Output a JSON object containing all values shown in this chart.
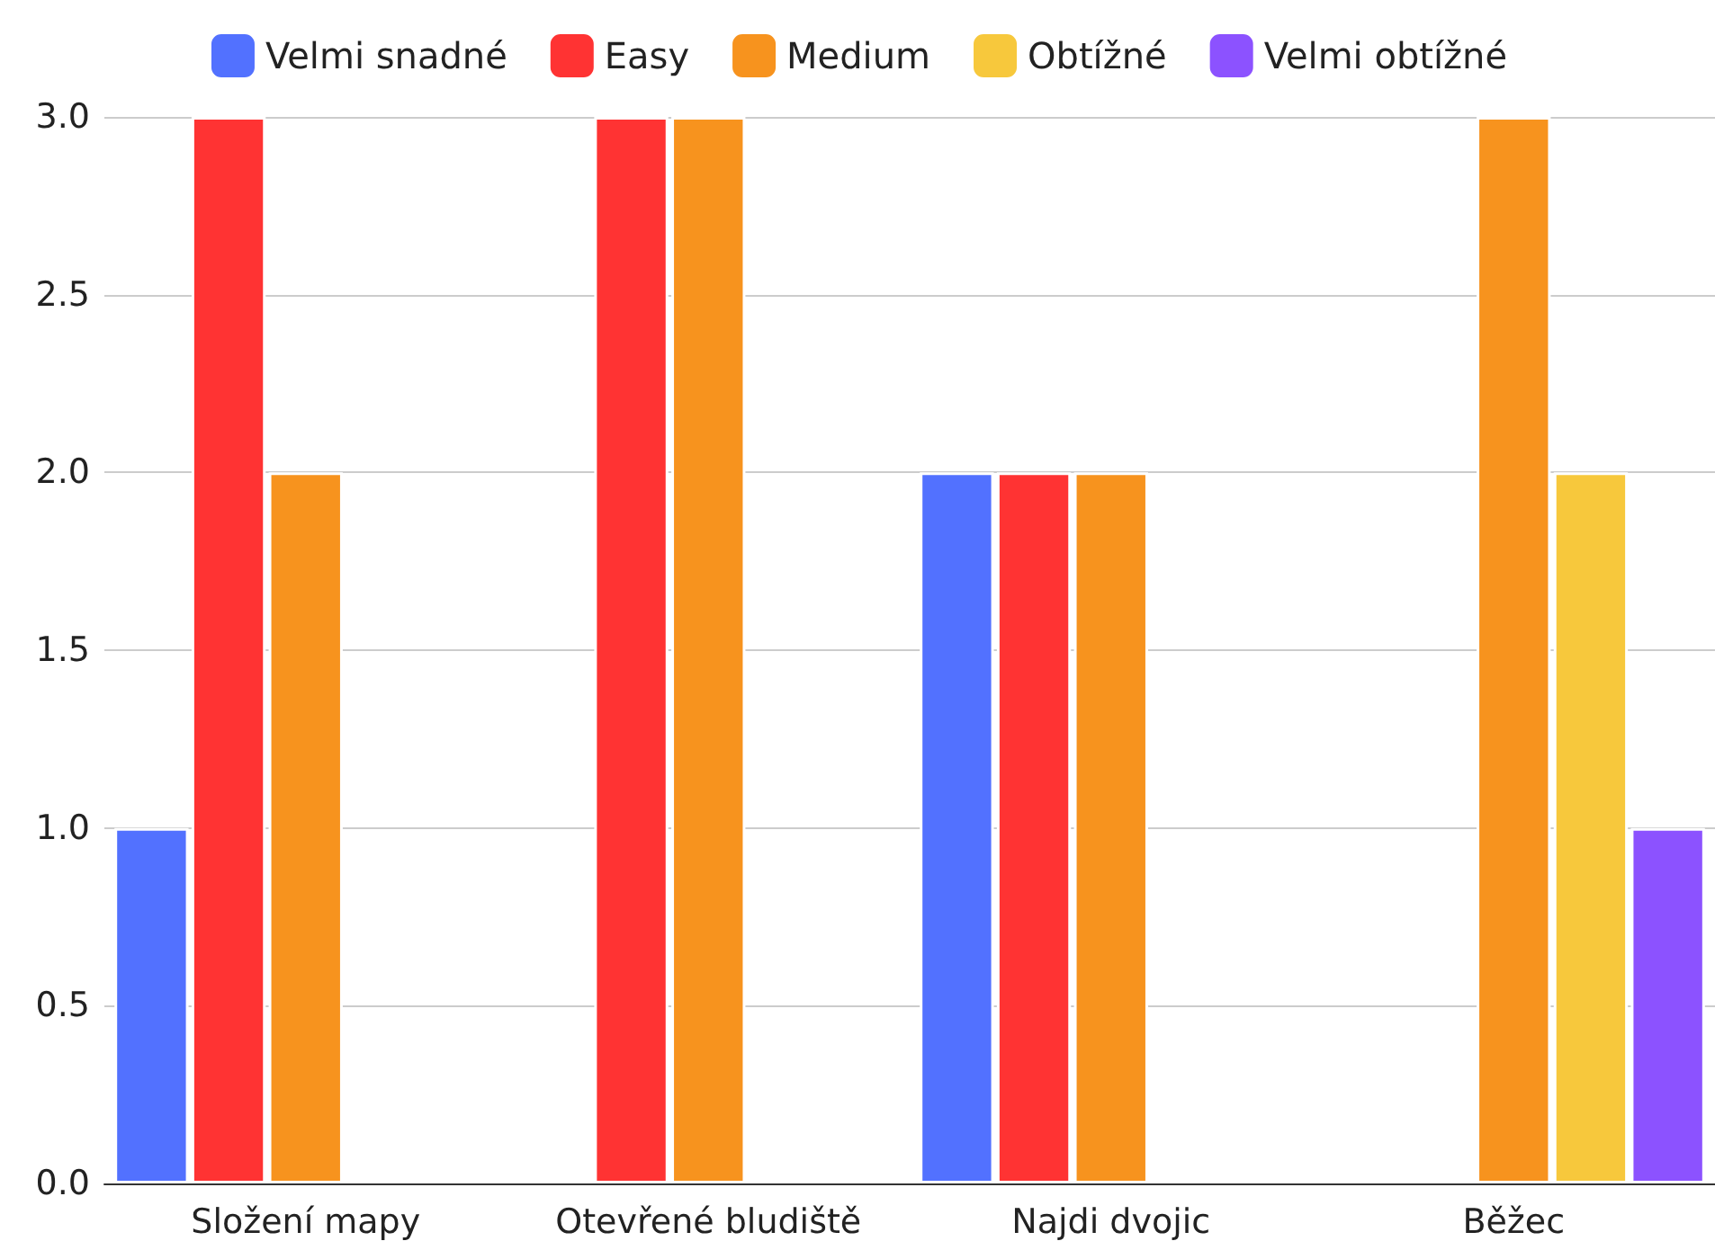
{
  "chart_data": {
    "type": "bar",
    "categories": [
      "Složení mapy",
      "Otevřené bludiště",
      "Najdi dvojic",
      "Běžec"
    ],
    "series": [
      {
        "name": "Velmi snadné",
        "color": "#5271ff",
        "values": [
          1,
          null,
          2,
          null
        ]
      },
      {
        "name": "Easy",
        "color": "#ff3333",
        "values": [
          3,
          3,
          2,
          null
        ]
      },
      {
        "name": "Medium",
        "color": "#f7931e",
        "values": [
          2,
          3,
          2,
          3
        ]
      },
      {
        "name": "Obtížné",
        "color": "#f7c83c",
        "values": [
          null,
          null,
          null,
          2
        ]
      },
      {
        "name": "Velmi obtížné",
        "color": "#8c52ff",
        "values": [
          null,
          null,
          null,
          1
        ]
      }
    ],
    "ylim": [
      0,
      3
    ],
    "yticks": [
      {
        "value": 0,
        "label": "0.0"
      },
      {
        "value": 0.5,
        "label": "0.5"
      },
      {
        "value": 1,
        "label": "1.0"
      },
      {
        "value": 1.5,
        "label": "1.5"
      },
      {
        "value": 2,
        "label": "2.0"
      },
      {
        "value": 2.5,
        "label": "2.5"
      },
      {
        "value": 3,
        "label": "3.0"
      }
    ],
    "grid": "y",
    "legend": "top"
  }
}
